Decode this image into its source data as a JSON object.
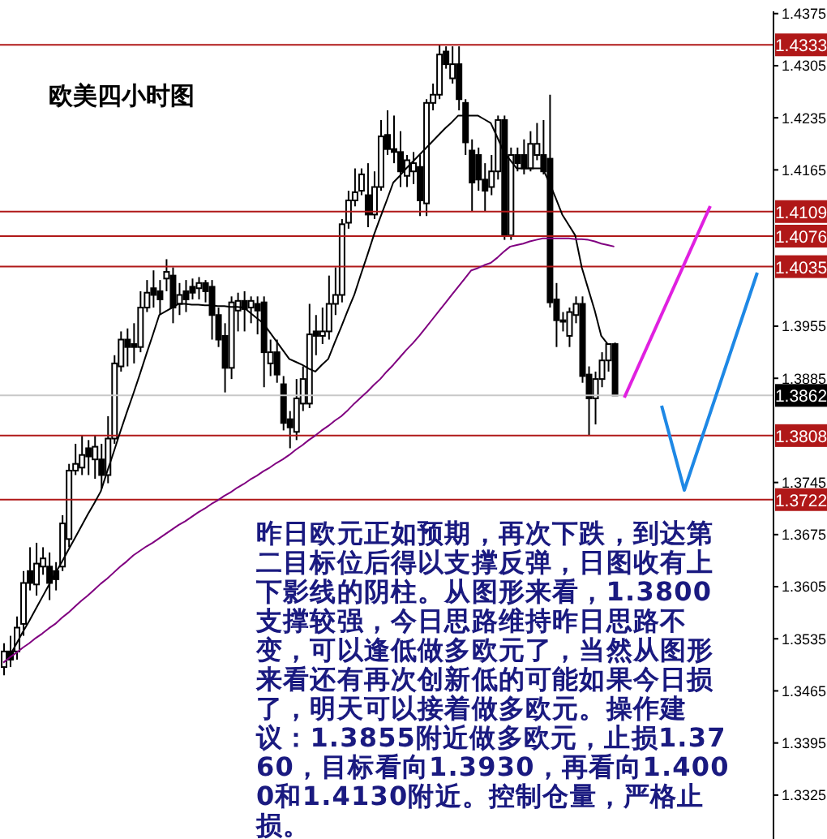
{
  "chart_data": {
    "type": "candlestick",
    "title": "欧美四小时图",
    "annotations": [
      "昨日欧元正如预期，再次下跌，到达第二目标位后得以支撑反弹，日图收有上下影线的阴柱。从图形来看，1.3800支撑较强，今日思路维持昨日思路不变，可以逢低做多欧元了，当然从图形来看还有再次创新低的可能如果今日损了，明天可以接着做多欧元。操作建议：1.3855附近做多欧元，止损1.3760，目标看向1.3930，再看向1.4000和1.4130附近。控制仓量，严格止损。"
    ],
    "color": "#000000",
    "categories": [
      null,
      null,
      null,
      null,
      null,
      null,
      null,
      null,
      null,
      null,
      null,
      null,
      null,
      null,
      null,
      null,
      null,
      null,
      null,
      null,
      null,
      null,
      null,
      null,
      null,
      null,
      null,
      null,
      null,
      null,
      null,
      null,
      null,
      null,
      null,
      null,
      null,
      null,
      null,
      null,
      null,
      null,
      null,
      null,
      null,
      null,
      null,
      null,
      null,
      null,
      null,
      null,
      null,
      null,
      null,
      null,
      null,
      null,
      null,
      null,
      null,
      null,
      null,
      null,
      null,
      null,
      null,
      null,
      null,
      null,
      null,
      null,
      null,
      null,
      null,
      null,
      null,
      null,
      null,
      null,
      null,
      null,
      null,
      null,
      null,
      null,
      null,
      null,
      null,
      null,
      null,
      null,
      null,
      null,
      null
    ],
    "ohlc": [
      [
        1.3497,
        1.3529,
        1.3486,
        1.3518
      ],
      [
        1.3518,
        1.3539,
        1.3497,
        1.3507
      ],
      [
        1.3518,
        1.3565,
        1.3507,
        1.355
      ],
      [
        1.3555,
        1.3626,
        1.3539,
        1.361
      ],
      [
        1.3626,
        1.3658,
        1.36,
        1.361
      ],
      [
        1.3608,
        1.3664,
        1.3593,
        1.3636
      ],
      [
        1.3632,
        1.3658,
        1.3621,
        1.3643
      ],
      [
        1.3632,
        1.3651,
        1.3587,
        1.361
      ],
      [
        1.3626,
        1.3638,
        1.36,
        1.3615
      ],
      [
        1.3632,
        1.3701,
        1.3626,
        1.369
      ],
      [
        1.3669,
        1.377,
        1.3658,
        1.3761
      ],
      [
        1.3761,
        1.3797,
        1.3755,
        1.377
      ],
      [
        1.3765,
        1.3808,
        1.3755,
        1.3782
      ],
      [
        1.3791,
        1.3802,
        1.3755,
        1.378
      ],
      [
        1.3776,
        1.3808,
        1.375,
        1.3793
      ],
      [
        1.3776,
        1.3797,
        1.3737,
        1.3755
      ],
      [
        1.3755,
        1.3834,
        1.3744,
        1.3804
      ],
      [
        1.3804,
        1.3916,
        1.3797,
        1.3905
      ],
      [
        1.3901,
        1.3948,
        1.3894,
        1.3937
      ],
      [
        1.3937,
        1.3952,
        1.3901,
        1.3927
      ],
      [
        1.3931,
        1.3959,
        1.3905,
        1.3927
      ],
      [
        1.3927,
        1.4002,
        1.392,
        1.398
      ],
      [
        1.398,
        1.4017,
        1.3974,
        1.4
      ],
      [
        1.4006,
        1.403,
        1.398,
        1.3997
      ],
      [
        1.4002,
        1.4017,
        1.397,
        1.3991
      ],
      [
        1.4019,
        1.4045,
        1.4002,
        1.4028
      ],
      [
        1.4023,
        1.4034,
        1.3959,
        1.398
      ],
      [
        1.3985,
        1.4013,
        1.397,
        1.3997
      ],
      [
        1.4002,
        1.4017,
        1.3974,
        1.3991
      ],
      [
        1.4008,
        1.4019,
        1.3991,
        1.4
      ],
      [
        1.4006,
        1.4021,
        1.3991,
        1.4013
      ],
      [
        1.4013,
        1.4017,
        1.3987,
        1.4002
      ],
      [
        1.4008,
        1.4017,
        1.3937,
        1.397
      ],
      [
        1.397,
        1.398,
        1.3927,
        1.3937
      ],
      [
        1.3942,
        1.3959,
        1.3866,
        1.3899
      ],
      [
        1.3899,
        1.3995,
        1.3884,
        1.3987
      ],
      [
        1.3976,
        1.4,
        1.3948,
        1.3989
      ],
      [
        1.3989,
        1.4002,
        1.3948,
        1.3978
      ],
      [
        1.398,
        1.3995,
        1.3959,
        1.3989
      ],
      [
        1.3985,
        1.3995,
        1.3944,
        1.3976
      ],
      [
        1.3987,
        1.3995,
        1.3873,
        1.392
      ],
      [
        1.3905,
        1.3937,
        1.3888,
        1.392
      ],
      [
        1.392,
        1.3937,
        1.3879,
        1.389
      ],
      [
        1.3877,
        1.3888,
        1.3815,
        1.3825
      ],
      [
        1.383,
        1.3841,
        1.3791,
        1.3819
      ],
      [
        1.3813,
        1.3884,
        1.3802,
        1.3858
      ],
      [
        1.3851,
        1.3901,
        1.3841,
        1.3884
      ],
      [
        1.3851,
        1.3985,
        1.3845,
        1.3944
      ],
      [
        1.3948,
        1.397,
        1.3916,
        1.3942
      ],
      [
        1.3942,
        1.398,
        1.3931,
        1.3948
      ],
      [
        1.3948,
        1.4023,
        1.3937,
        1.3985
      ],
      [
        1.3985,
        1.4034,
        1.397,
        1.3997
      ],
      [
        1.3997,
        1.4099,
        1.3987,
        1.4092
      ],
      [
        1.4094,
        1.4137,
        1.4086,
        1.4124
      ],
      [
        1.4124,
        1.4167,
        1.4116,
        1.4135
      ],
      [
        1.4137,
        1.4167,
        1.4131,
        1.4159
      ],
      [
        1.4131,
        1.4174,
        1.4088,
        1.4105
      ],
      [
        1.4105,
        1.4163,
        1.4099,
        1.4142
      ],
      [
        1.4142,
        1.4232,
        1.4137,
        1.421
      ],
      [
        1.4212,
        1.4245,
        1.4185,
        1.4193
      ],
      [
        1.4193,
        1.4238,
        1.4174,
        1.4189
      ],
      [
        1.4189,
        1.4217,
        1.4142,
        1.4163
      ],
      [
        1.4157,
        1.4185,
        1.4142,
        1.4178
      ],
      [
        1.4163,
        1.4189,
        1.4146,
        1.4174
      ],
      [
        1.4169,
        1.4185,
        1.4103,
        1.4124
      ],
      [
        1.412,
        1.426,
        1.4103,
        1.4255
      ],
      [
        1.4255,
        1.4281,
        1.4245,
        1.4266
      ],
      [
        1.4266,
        1.4333,
        1.426,
        1.432
      ],
      [
        1.4324,
        1.4331,
        1.4301,
        1.4307
      ],
      [
        1.4288,
        1.4331,
        1.4281,
        1.4307
      ],
      [
        1.4307,
        1.4331,
        1.4245,
        1.426
      ],
      [
        1.4255,
        1.426,
        1.4185,
        1.4202
      ],
      [
        1.4191,
        1.4206,
        1.4109,
        1.4148
      ],
      [
        1.4185,
        1.4195,
        1.4137,
        1.4152
      ],
      [
        1.4152,
        1.4174,
        1.4109,
        1.4137
      ],
      [
        1.4142,
        1.4185,
        1.4131,
        1.4163
      ],
      [
        1.4163,
        1.4238,
        1.4152,
        1.4232
      ],
      [
        1.4232,
        1.4238,
        1.4071,
        1.4077
      ],
      [
        1.4077,
        1.4195,
        1.4071,
        1.4185
      ],
      [
        1.4185,
        1.4195,
        1.4163,
        1.4174
      ],
      [
        1.4185,
        1.4206,
        1.4159,
        1.4167
      ],
      [
        1.4167,
        1.4217,
        1.4163,
        1.42
      ],
      [
        1.4185,
        1.4228,
        1.4178,
        1.42
      ],
      [
        1.4185,
        1.4232,
        1.4159,
        1.4163
      ],
      [
        1.418,
        1.4266,
        1.398,
        1.3987
      ],
      [
        1.3991,
        1.4013,
        1.3927,
        1.3963
      ],
      [
        1.3963,
        1.3974,
        1.3948,
        1.3961
      ],
      [
        1.3942,
        1.398,
        1.3927,
        1.3974
      ],
      [
        1.397,
        1.3995,
        1.3959,
        1.3985
      ],
      [
        1.3985,
        1.3995,
        1.3879,
        1.3888
      ],
      [
        1.389,
        1.3901,
        1.3808,
        1.3858
      ],
      [
        1.3858,
        1.3894,
        1.3823,
        1.3884
      ],
      [
        1.3884,
        1.392,
        1.3873,
        1.3909
      ],
      [
        1.3909,
        1.3931,
        1.3894,
        1.3931
      ],
      [
        1.3931,
        1.3933,
        1.3862,
        1.3862
      ]
    ],
    "series": [
      {
        "type": "line",
        "color": "#000000",
        "values": [
          null,
          1.3512,
          1.3528,
          1.3544,
          1.3559,
          1.3575,
          1.3591,
          1.3607,
          1.3623,
          1.3638,
          1.3654,
          1.367,
          1.3686,
          1.3702,
          1.3717,
          1.3733,
          1.376,
          1.3786,
          1.3813,
          1.3839,
          1.3864,
          1.389,
          1.3917,
          1.3943,
          1.397,
          1.3975,
          1.398,
          1.3985,
          1.3985,
          1.3984,
          1.3984,
          1.3983,
          1.3983,
          1.3982,
          1.3982,
          1.3981,
          1.3981,
          1.398,
          1.3973,
          1.3966,
          1.3959,
          1.3947,
          1.3935,
          1.3923,
          1.3911,
          1.3907,
          1.3903,
          1.3898,
          1.3894,
          1.3903,
          1.3911,
          1.3933,
          1.3954,
          1.3976,
          1.3997,
          1.4024,
          1.405,
          1.4077,
          1.4101,
          1.4124,
          1.4148,
          1.4157,
          1.4167,
          1.4176,
          1.4185,
          1.4194,
          1.4203,
          1.4212,
          1.4221,
          1.4229,
          1.4238,
          1.4238,
          1.4238,
          1.4238,
          1.4233,
          1.4228,
          1.4209,
          1.4189,
          1.4178,
          1.4167,
          1.4167,
          1.4167,
          1.4167,
          1.4167,
          1.4148,
          1.4127,
          1.4105,
          1.4091,
          1.4077,
          1.4034,
          1.4005,
          1.3976,
          1.3942,
          1.3931,
          null
        ]
      },
      {
        "type": "line",
        "color": "#800080",
        "values": [
          1.3503,
          1.351,
          1.3516,
          1.3523,
          1.3529,
          1.3536,
          1.3542,
          1.3549,
          1.3555,
          1.3563,
          1.357,
          1.3578,
          1.3586,
          1.3593,
          1.3601,
          1.3609,
          1.3616,
          1.3624,
          1.3632,
          1.3639,
          1.3647,
          1.3653,
          1.3659,
          1.3664,
          1.367,
          1.3676,
          1.3682,
          1.3688,
          1.3693,
          1.3699,
          1.3705,
          1.371,
          1.3716,
          1.3721,
          1.3727,
          1.3732,
          1.3738,
          1.3743,
          1.3749,
          1.3754,
          1.376,
          1.3765,
          1.3771,
          1.3776,
          1.3782,
          1.3789,
          1.3795,
          1.3802,
          1.3808,
          1.3815,
          1.3821,
          1.3828,
          1.3834,
          1.3842,
          1.3851,
          1.3859,
          1.3867,
          1.3876,
          1.3884,
          1.3894,
          1.3903,
          1.3913,
          1.3923,
          1.3932,
          1.3942,
          1.3953,
          1.3964,
          1.3975,
          1.3986,
          1.3997,
          1.4008,
          1.4019,
          1.403,
          1.4033,
          1.4037,
          1.404,
          1.4047,
          1.4055,
          1.4062,
          1.4064,
          1.4066,
          1.4069,
          1.4071,
          1.4073,
          1.4073,
          1.4073,
          1.4073,
          1.4073,
          1.4072,
          1.4072,
          1.4071,
          1.4069,
          1.4066,
          1.4064,
          1.4062
        ]
      }
    ],
    "ylim": [
      1.3266,
      1.4378
    ],
    "yticks": [
      1.4375,
      1.4305,
      1.4235,
      1.4165,
      1.3955,
      1.3885,
      1.3745,
      1.3675,
      1.3605,
      1.3535,
      1.3465,
      1.3395,
      1.3325
    ],
    "tick_labels": "y",
    "ref_lines": [
      {
        "axis": "y",
        "value": 1.4333,
        "label": "1.4333",
        "color": "#b01818"
      },
      {
        "axis": "y",
        "value": 1.4109,
        "label": "1.4109",
        "color": "#b01818"
      },
      {
        "axis": "y",
        "value": 1.4076,
        "label": "1.4076",
        "color": "#b01818"
      },
      {
        "axis": "y",
        "value": 1.4035,
        "label": "1.4035",
        "color": "#b01818"
      },
      {
        "axis": "y",
        "value": 1.3862,
        "label": "1.3862",
        "color": "#c8c8c8"
      },
      {
        "axis": "y",
        "value": 1.3808,
        "label": "1.3808",
        "color": "#b01818"
      },
      {
        "axis": "y",
        "value": 1.3722,
        "label": "1.3722",
        "color": "#b01818"
      }
    ]
  }
}
